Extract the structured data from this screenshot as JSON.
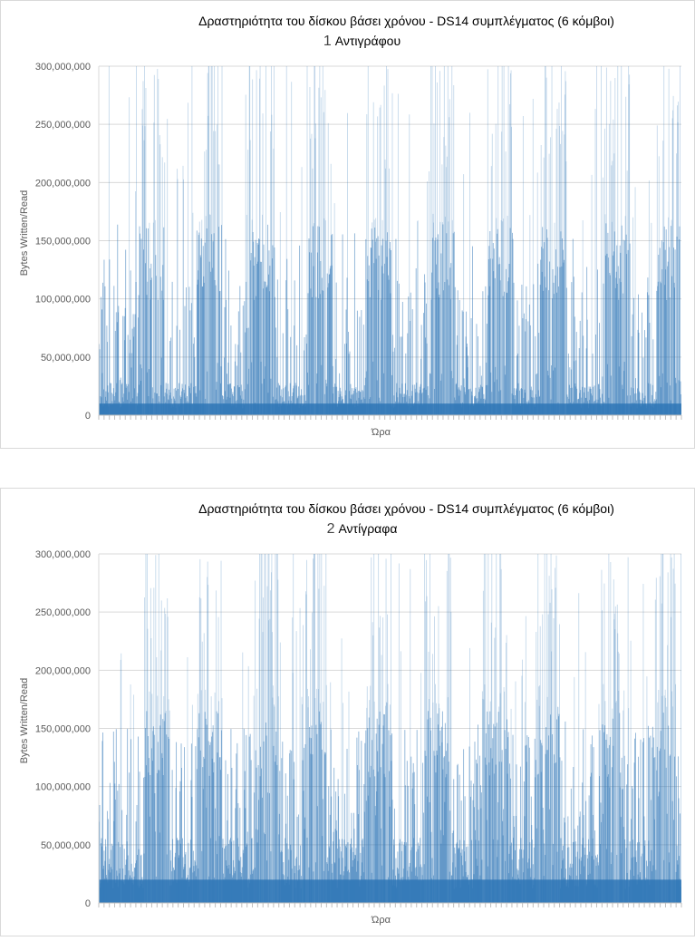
{
  "charts": [
    {
      "id": "panel-1",
      "title": "Δραστηριότητα του δίσκου βάσει χρόνου - DS14 συμπλέγματος (6 κόμβοι)",
      "subtitle_number": "1",
      "subtitle_text": "Αντιγράφου",
      "ylabel": "Bytes Written/Read",
      "xlabel": "Ώρα"
    },
    {
      "id": "panel-2",
      "title": "Δραστηριότητα του δίσκου βάσει χρόνου - DS14 συμπλέγματος (6 κόμβοι)",
      "subtitle_number": "2",
      "subtitle_text": "Αντίγραφα",
      "ylabel": "Bytes Written/Read",
      "xlabel": "Ώρα"
    }
  ],
  "chart_data": [
    {
      "type": "area",
      "title": "Δραστηριότητα του δίσκου βάσει χρόνου - DS14 συμπλέγματος (6 κόμβοι)",
      "subtitle": "1 Αντιγράφου",
      "xlabel": "Ώρα",
      "ylabel": "Bytes Written/Read",
      "ylim": [
        0,
        300000000
      ],
      "yticks": [
        "0",
        "50,000,000",
        "100,000,000",
        "150,000,000",
        "200,000,000",
        "250,000,000",
        "300,000,000"
      ],
      "grid": true,
      "color": "#2e75b6",
      "baseline_level": 10000000,
      "burst_level": 165000000,
      "burst_periods": [
        0.09,
        0.19,
        0.28,
        0.38,
        0.48,
        0.59,
        0.69,
        0.78,
        0.89,
        0.98
      ]
    },
    {
      "type": "area",
      "title": "Δραστηριότητα του δίσκου βάσει χρόνου - DS14 συμπλέγματος (6 κόμβοι)",
      "subtitle": "2 Αντίγραφα",
      "xlabel": "Ώρα",
      "ylabel": "Bytes Written/Read",
      "ylim": [
        0,
        300000000
      ],
      "yticks": [
        "0",
        "50,000,000",
        "100,000,000",
        "150,000,000",
        "200,000,000",
        "250,000,000",
        "300,000,000"
      ],
      "grid": true,
      "color": "#2e75b6",
      "baseline_level": 20000000,
      "burst_level": 180000000,
      "burst_periods": [
        0.1,
        0.19,
        0.29,
        0.37,
        0.48,
        0.58,
        0.68,
        0.77,
        0.88,
        0.97
      ]
    }
  ]
}
